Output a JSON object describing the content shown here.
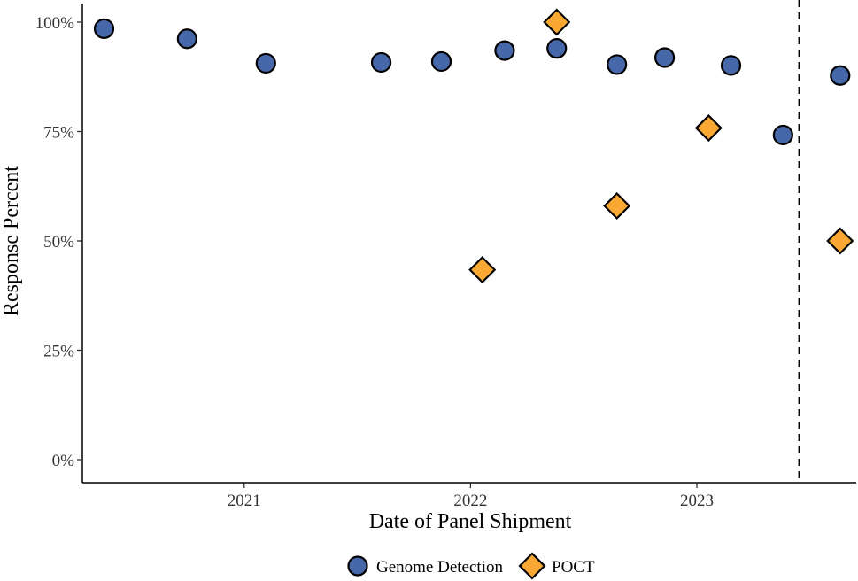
{
  "chart_data": {
    "type": "scatter",
    "title": "",
    "xlabel": "Date of Panel Shipment",
    "ylabel": "Response Percent",
    "xlim": [
      "2020-04-15",
      "2023-09-15"
    ],
    "ylim": [
      0,
      100
    ],
    "x_ticks": [
      {
        "date": "2021-01-01",
        "label": "2021"
      },
      {
        "date": "2022-01-01",
        "label": "2022"
      },
      {
        "date": "2023-01-01",
        "label": "2023"
      }
    ],
    "y_ticks": [
      {
        "value": 0,
        "label": "0%"
      },
      {
        "value": 25,
        "label": "25%"
      },
      {
        "value": 50,
        "label": "50%"
      },
      {
        "value": 75,
        "label": "75%"
      },
      {
        "value": 100,
        "label": "100%"
      }
    ],
    "grid": false,
    "legend_position": "bottom",
    "reference_line": {
      "x": "2023-06-15",
      "style": "dashed"
    },
    "series": [
      {
        "name": "Genome Detection",
        "marker": "circle",
        "color": "#4667A8",
        "points": [
          {
            "x": "2020-05-20",
            "y": 98.5
          },
          {
            "x": "2020-10-01",
            "y": 96.2
          },
          {
            "x": "2021-02-05",
            "y": 90.6
          },
          {
            "x": "2021-08-10",
            "y": 90.8
          },
          {
            "x": "2021-11-15",
            "y": 91.0
          },
          {
            "x": "2022-02-25",
            "y": 93.5
          },
          {
            "x": "2022-05-20",
            "y": 94.0
          },
          {
            "x": "2022-08-25",
            "y": 90.3
          },
          {
            "x": "2022-11-10",
            "y": 91.9
          },
          {
            "x": "2023-02-25",
            "y": 90.1
          },
          {
            "x": "2023-05-20",
            "y": 74.2
          },
          {
            "x": "2023-08-20",
            "y": 87.8
          }
        ]
      },
      {
        "name": "POCT",
        "marker": "diamond",
        "color": "#F8A833",
        "points": [
          {
            "x": "2022-01-20",
            "y": 43.4
          },
          {
            "x": "2022-05-20",
            "y": 100.0
          },
          {
            "x": "2022-08-25",
            "y": 58.0
          },
          {
            "x": "2023-01-20",
            "y": 75.8
          },
          {
            "x": "2023-08-20",
            "y": 50.0
          }
        ]
      }
    ]
  }
}
